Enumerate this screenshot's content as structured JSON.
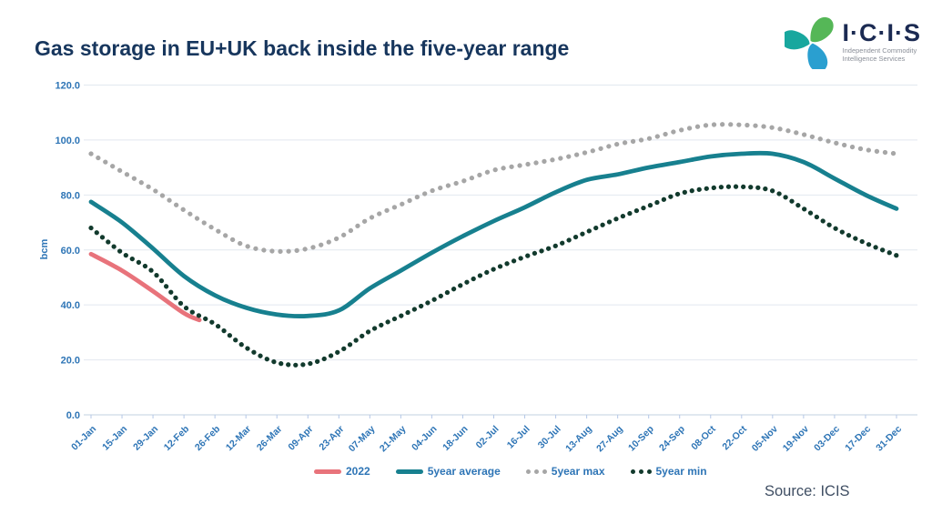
{
  "header": {
    "title": "Gas storage in EU+UK back inside the five-year range",
    "logo": {
      "name": "I·C·I·S",
      "tagline_line1": "Independent Commodity",
      "tagline_line2": "Intelligence Services",
      "petal_colors": [
        "#55b757",
        "#2a9fd0",
        "#18a79e"
      ]
    }
  },
  "footer": {
    "source": "Source: ICIS"
  },
  "colors": {
    "title_text": "#17365d",
    "axis_text": "#2e75b6",
    "gridline": "#e2e8ef",
    "baseline": "#c2d0e2",
    "tick_mark": "#b4c7e7"
  },
  "chart_data": {
    "type": "line",
    "title": "Gas storage in EU+UK back inside the five-year range",
    "xlabel": "",
    "ylabel": "bcm",
    "ylim": [
      0,
      120
    ],
    "y_ticks": [
      0,
      20,
      40,
      60,
      80,
      100,
      120
    ],
    "grid": "horizontal",
    "legend_position": "bottom",
    "categories": [
      "01-Jan",
      "15-Jan",
      "29-Jan",
      "12-Feb",
      "26-Feb",
      "12-Mar",
      "26-Mar",
      "09-Apr",
      "23-Apr",
      "07-May",
      "21-May",
      "04-Jun",
      "18-Jun",
      "02-Jul",
      "16-Jul",
      "30-Jul",
      "13-Aug",
      "27-Aug",
      "10-Sep",
      "24-Sep",
      "08-Oct",
      "22-Oct",
      "05-Nov",
      "19-Nov",
      "03-Dec",
      "17-Dec",
      "31-Dec"
    ],
    "series": [
      {
        "name": "2022",
        "style": "solid",
        "color": "#e8737b",
        "x_days": [
          0,
          14,
          28,
          42,
          49
        ],
        "values": [
          58.5,
          52.5,
          45,
          37,
          34.5
        ]
      },
      {
        "name": "5year average",
        "style": "solid",
        "color": "#17808f",
        "values": [
          77.5,
          70,
          60.5,
          50.5,
          43.5,
          39,
          36.5,
          36,
          38,
          46,
          52.5,
          59,
          65,
          70.5,
          75.5,
          81,
          85.5,
          87.5,
          90,
          92,
          94,
          95,
          95,
          92,
          86,
          80,
          75
        ]
      },
      {
        "name": "5year max",
        "style": "dotted",
        "color": "#a6a6a6",
        "dot_gap": 9,
        "values": [
          95,
          88.5,
          82,
          74.5,
          67.5,
          61.5,
          59.5,
          60.5,
          64.5,
          71.5,
          76.5,
          81.5,
          85,
          89,
          91,
          93,
          95.5,
          98.5,
          100.5,
          103.5,
          105.5,
          105.5,
          104.5,
          102,
          99,
          96.5,
          95
        ]
      },
      {
        "name": "5year min",
        "style": "dotted",
        "color": "#123a2d",
        "dot_gap": 8,
        "values": [
          68,
          59,
          52,
          39.5,
          33,
          24.5,
          19,
          18.5,
          23,
          30.5,
          36,
          41.5,
          47.5,
          53,
          57.5,
          61.5,
          66.5,
          71.5,
          76,
          80.5,
          82.5,
          83,
          81.5,
          75,
          68,
          62.5,
          58
        ]
      }
    ]
  }
}
